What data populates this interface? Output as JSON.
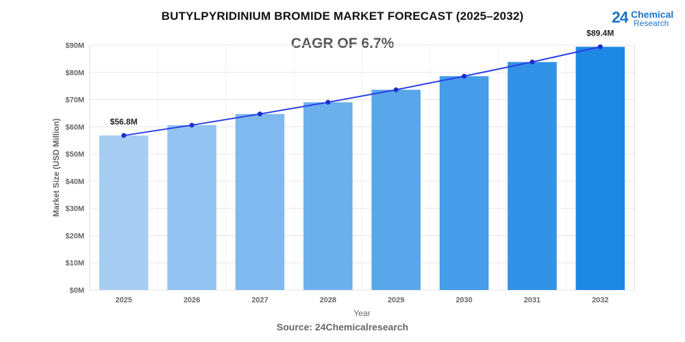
{
  "header": {
    "title": "BUTYLPYRIDINIUM BROMIDE MARKET FORECAST (2025–2032)",
    "cagr": "CAGR OF 6.7%"
  },
  "logo": {
    "number": "24",
    "line1": "Chemical",
    "line2": "Research"
  },
  "source": "Source: 24Chemicalresearch",
  "chart_data": {
    "type": "bar",
    "categories": [
      "2025",
      "2026",
      "2027",
      "2028",
      "2029",
      "2030",
      "2031",
      "2032"
    ],
    "series": [
      {
        "values": [
          56.8,
          60.6,
          64.7,
          69.0,
          73.6,
          78.6,
          83.8,
          89.4
        ]
      }
    ],
    "overlay_line": true,
    "data_labels": [
      {
        "category": "2025",
        "text": "$56.8M"
      },
      {
        "category": "2032",
        "text": "$89.4M"
      }
    ],
    "xlabel": "Year",
    "ylabel": "Market Size (USD Million)",
    "ylim": [
      0,
      90
    ],
    "yticks": [
      0,
      10,
      20,
      30,
      40,
      50,
      60,
      70,
      80,
      90
    ],
    "ytick_labels": [
      "$0M",
      "$10M",
      "$20M",
      "$30M",
      "$40M",
      "$50M",
      "$60M",
      "$70M",
      "$80M",
      "$90M"
    ],
    "grid": true,
    "colors": {
      "bar_start": "#a7cdf3",
      "bar_end": "#1e88e5",
      "line": "#2a3ee6",
      "marker": "#1b2fcf",
      "grid": "#e6e6e6",
      "axis_text": "#666666"
    }
  }
}
